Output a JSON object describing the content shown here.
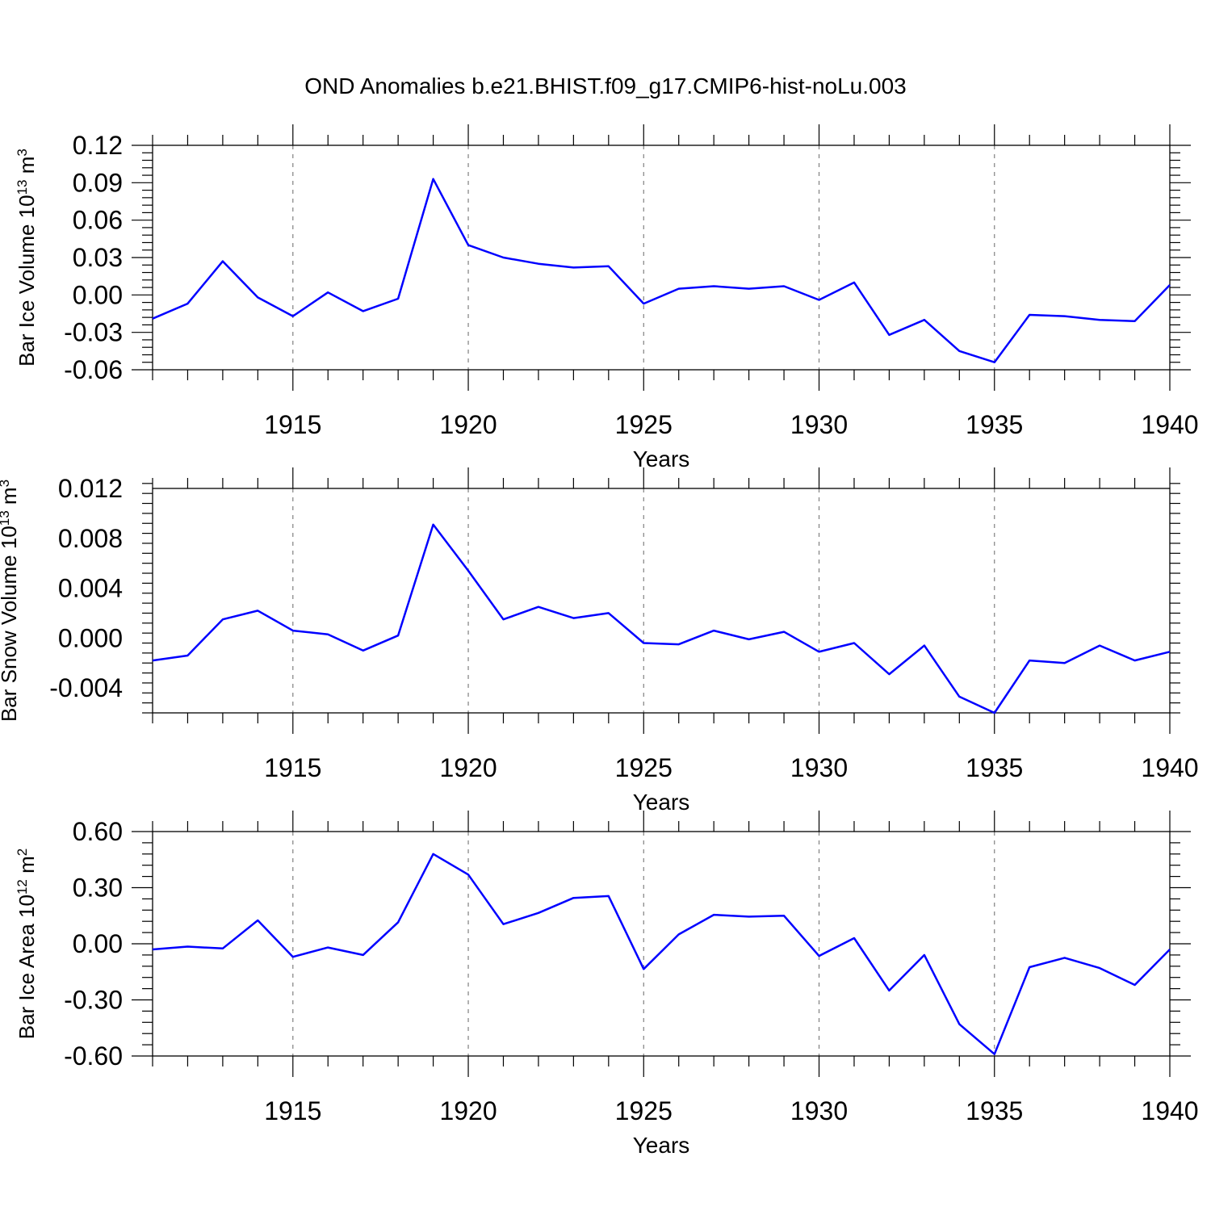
{
  "title": "OND Anomalies b.e21.BHIST.f09_g17.CMIP6-hist-noLu.003",
  "colors": {
    "line": "#0000ff",
    "axis": "#000000",
    "grid": "#808080"
  },
  "chart_data": [
    {
      "type": "line",
      "ylabel": {
        "prefix": "Bar Ice Volume 10",
        "exp": "13",
        "unit": " m",
        "unit_exp": "3"
      },
      "xlabel": "Years",
      "xlim": [
        1911,
        1940
      ],
      "ylim": [
        -0.06,
        0.12
      ],
      "yticks": [
        -0.06,
        -0.03,
        0.0,
        0.03,
        0.06,
        0.09,
        0.12
      ],
      "ytick_labels": [
        "-0.06",
        "-0.03",
        "0.00",
        "0.03",
        "0.06",
        "0.09",
        "0.12"
      ],
      "xticks": [
        1915,
        1920,
        1925,
        1930,
        1935,
        1940
      ],
      "xtick_labels": [
        "1915",
        "1920",
        "1925",
        "1930",
        "1935",
        "1940"
      ],
      "grid": "vertical dashed at major x ticks",
      "series": [
        {
          "x": [
            1911,
            1912,
            1913,
            1914,
            1915,
            1916,
            1917,
            1918,
            1919,
            1920,
            1921,
            1922,
            1923,
            1924,
            1925,
            1926,
            1927,
            1928,
            1929,
            1930,
            1931,
            1932,
            1933,
            1934,
            1935,
            1936,
            1937,
            1938,
            1939,
            1940
          ],
          "values": [
            -0.019,
            -0.007,
            0.027,
            -0.002,
            -0.017,
            0.002,
            -0.013,
            -0.003,
            0.093,
            0.04,
            0.03,
            0.025,
            0.022,
            0.023,
            -0.007,
            0.005,
            0.007,
            0.005,
            0.007,
            -0.004,
            0.01,
            -0.032,
            -0.02,
            -0.045,
            -0.054,
            -0.016,
            -0.017,
            -0.02,
            -0.021,
            0.008
          ]
        }
      ]
    },
    {
      "type": "line",
      "ylabel": {
        "prefix": "Bar Snow Volume 10",
        "exp": "13",
        "unit": " m",
        "unit_exp": "3"
      },
      "xlabel": "Years",
      "xlim": [
        1911,
        1940
      ],
      "ylim": [
        -0.006,
        0.012
      ],
      "yticks": [
        -0.004,
        0.0,
        0.004,
        0.008,
        0.012
      ],
      "ytick_labels": [
        "-0.004",
        "0.000",
        "0.004",
        "0.008",
        "0.012"
      ],
      "xticks": [
        1915,
        1920,
        1925,
        1930,
        1935,
        1940
      ],
      "xtick_labels": [
        "1915",
        "1920",
        "1925",
        "1930",
        "1935",
        "1940"
      ],
      "grid": "vertical dashed at major x ticks",
      "series": [
        {
          "x": [
            1911,
            1912,
            1913,
            1914,
            1915,
            1916,
            1917,
            1918,
            1919,
            1920,
            1921,
            1922,
            1923,
            1924,
            1925,
            1926,
            1927,
            1928,
            1929,
            1930,
            1931,
            1932,
            1933,
            1934,
            1935,
            1936,
            1937,
            1938,
            1939,
            1940
          ],
          "values": [
            -0.0018,
            -0.0014,
            0.0015,
            0.0022,
            0.0006,
            0.0003,
            -0.001,
            0.0002,
            0.0091,
            0.0054,
            0.0015,
            0.0025,
            0.0016,
            0.002,
            -0.0004,
            -0.0005,
            0.0006,
            -0.0001,
            0.0005,
            -0.0011,
            -0.0004,
            -0.0029,
            -0.0006,
            -0.0047,
            -0.006,
            -0.0018,
            -0.002,
            -0.0006,
            -0.0018,
            -0.0011
          ]
        }
      ]
    },
    {
      "type": "line",
      "ylabel": {
        "prefix": "Bar Ice Area 10",
        "exp": "12",
        "unit": " m",
        "unit_exp": "2"
      },
      "xlabel": "Years",
      "xlim": [
        1911,
        1940
      ],
      "ylim": [
        -0.6,
        0.6
      ],
      "yticks": [
        -0.6,
        -0.3,
        0.0,
        0.3,
        0.6
      ],
      "ytick_labels": [
        "-0.60",
        "-0.30",
        "0.00",
        "0.30",
        "0.60"
      ],
      "xticks": [
        1915,
        1920,
        1925,
        1930,
        1935,
        1940
      ],
      "xtick_labels": [
        "1915",
        "1920",
        "1925",
        "1930",
        "1935",
        "1940"
      ],
      "grid": "vertical dashed at major x ticks",
      "series": [
        {
          "x": [
            1911,
            1912,
            1913,
            1914,
            1915,
            1916,
            1917,
            1918,
            1919,
            1920,
            1921,
            1922,
            1923,
            1924,
            1925,
            1926,
            1927,
            1928,
            1929,
            1930,
            1931,
            1932,
            1933,
            1934,
            1935,
            1936,
            1937,
            1938,
            1939,
            1940
          ],
          "values": [
            -0.03,
            -0.015,
            -0.025,
            0.125,
            -0.07,
            -0.02,
            -0.06,
            0.115,
            0.48,
            0.37,
            0.105,
            0.165,
            0.245,
            0.255,
            -0.135,
            0.05,
            0.155,
            0.145,
            0.15,
            -0.065,
            0.03,
            -0.25,
            -0.06,
            -0.43,
            -0.59,
            -0.125,
            -0.075,
            -0.13,
            -0.22,
            -0.03
          ]
        }
      ]
    }
  ]
}
